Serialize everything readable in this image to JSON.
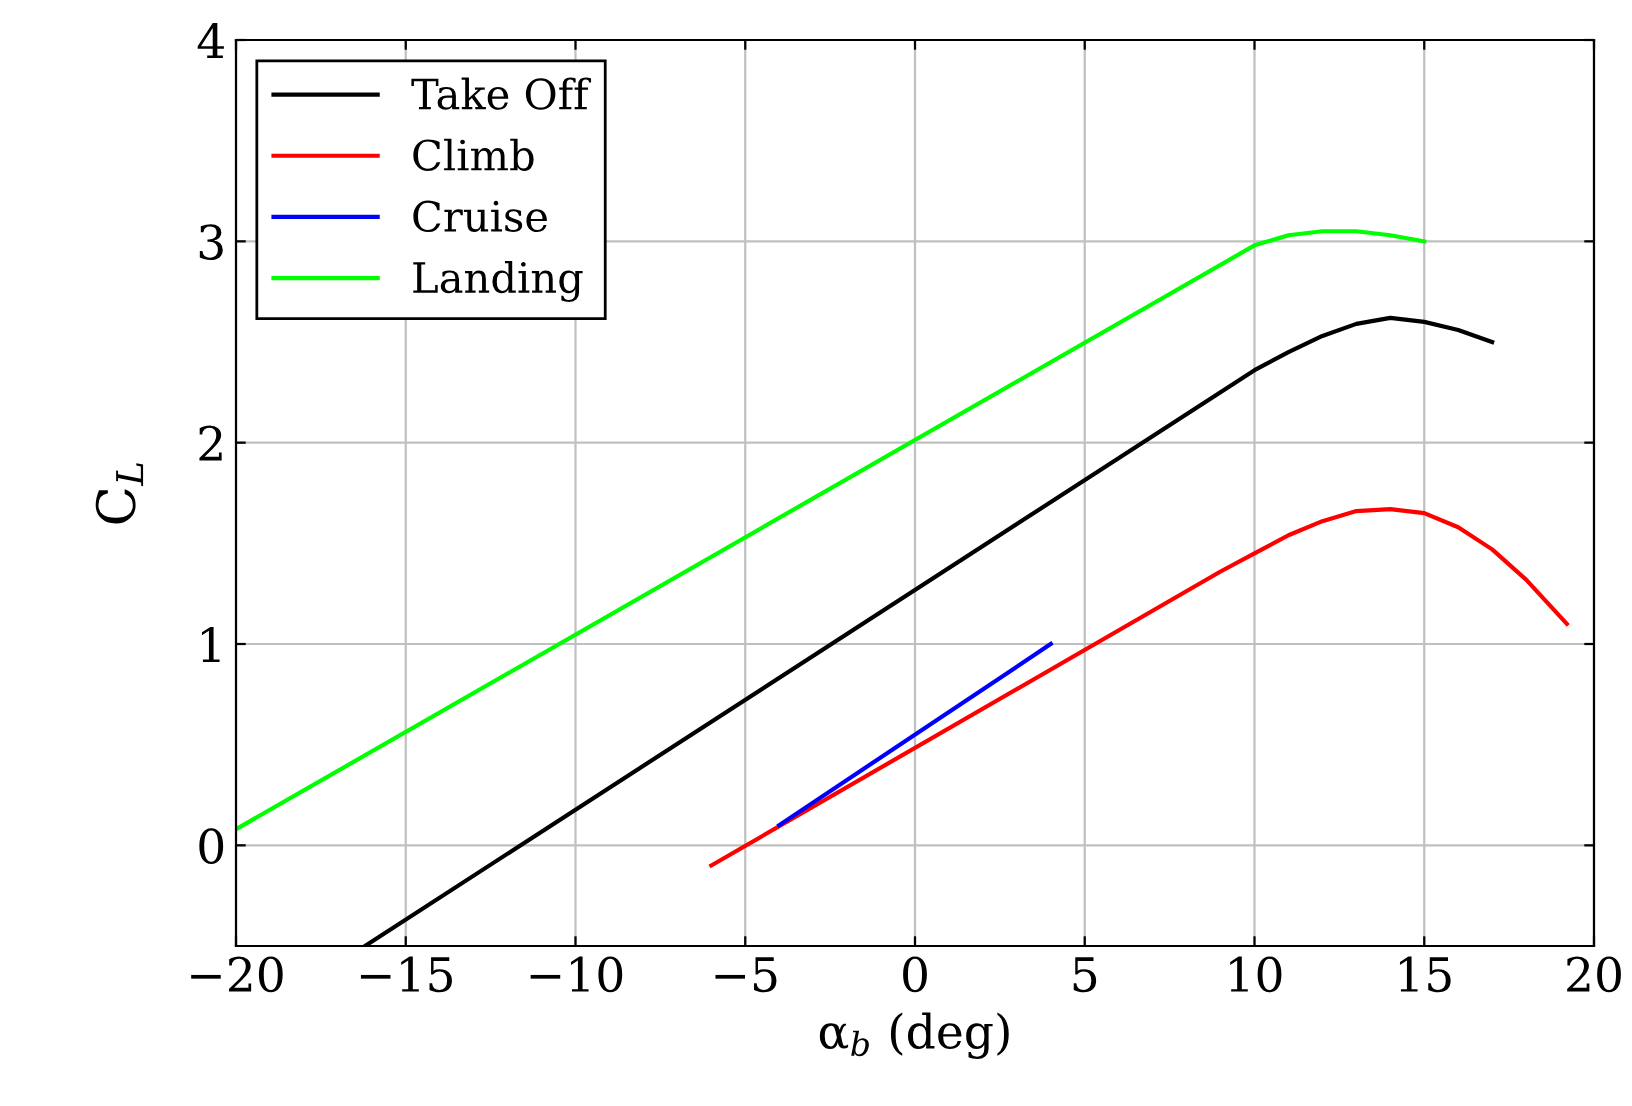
{
  "chart_data": {
    "type": "line",
    "xlabel": "α$_{b}$ (deg)",
    "ylabel": "C$_{L}$",
    "xlim": [
      -20,
      20
    ],
    "xticks": [
      -20,
      -15,
      -10,
      -5,
      0,
      5,
      10,
      15,
      20
    ],
    "ylim": [
      -0.5,
      4
    ],
    "yticks": [
      0,
      1,
      2,
      3,
      4
    ],
    "grid": true,
    "legend": "top left",
    "marker": "none",
    "line_style": "solid",
    "series": [
      {
        "name": "Take Off",
        "color": "#000000",
        "x": [
          -16.2,
          10,
          11,
          12,
          13,
          14,
          15,
          16,
          17
        ],
        "values": [
          -0.5,
          2.36,
          2.45,
          2.53,
          2.59,
          2.62,
          2.6,
          2.56,
          2.5
        ]
      },
      {
        "name": "Climb",
        "color": "#ff0000",
        "x": [
          -6,
          9,
          10,
          11,
          12,
          13,
          14,
          15,
          16,
          17,
          18,
          19.2
        ],
        "values": [
          -0.1,
          1.36,
          1.45,
          1.54,
          1.61,
          1.66,
          1.67,
          1.65,
          1.58,
          1.47,
          1.32,
          1.1
        ]
      },
      {
        "name": "Cruise",
        "color": "#0000ff",
        "x": [
          -4,
          4
        ],
        "values": [
          0.1,
          1.0
        ]
      },
      {
        "name": "Landing",
        "color": "#00ff00",
        "x": [
          -20,
          10,
          11,
          12,
          12.5,
          13,
          14,
          15
        ],
        "values": [
          0.08,
          2.98,
          3.03,
          3.05,
          3.05,
          3.05,
          3.03,
          3.0
        ]
      }
    ]
  }
}
